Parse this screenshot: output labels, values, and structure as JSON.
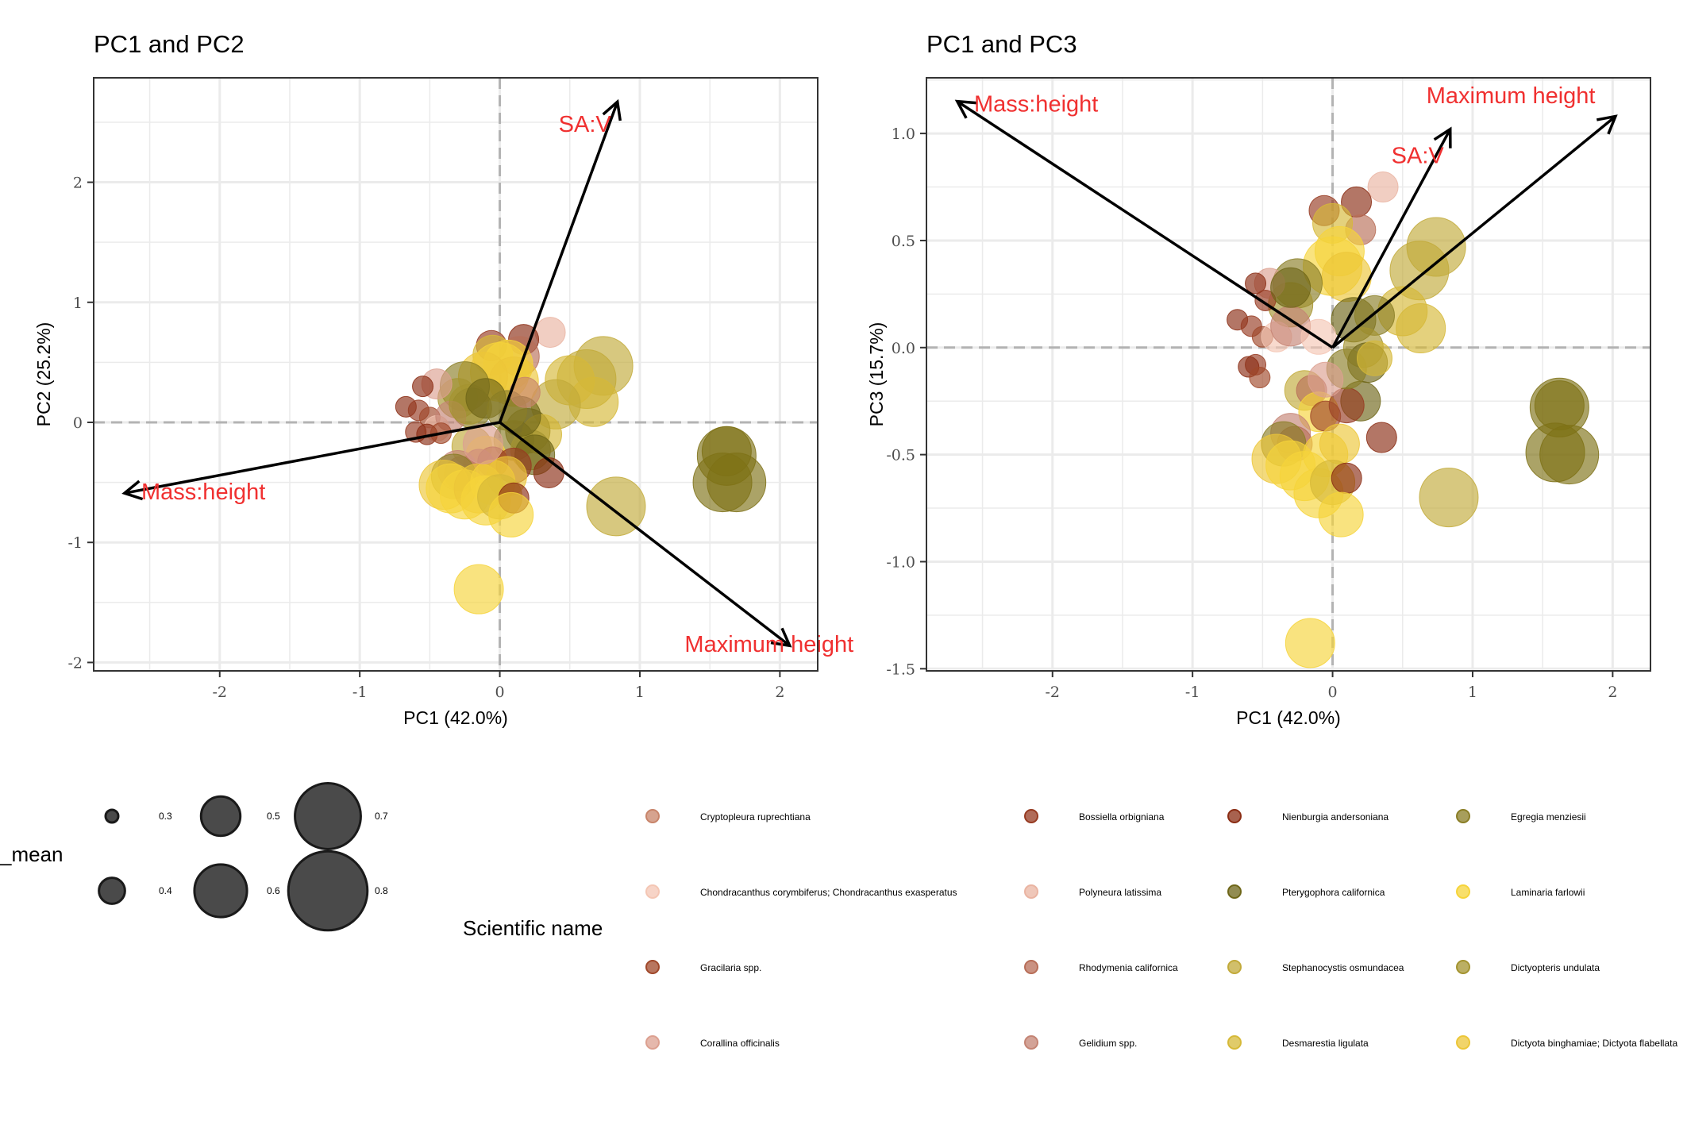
{
  "chart_data": [
    {
      "type": "scatter",
      "title": "PC1 and PC2",
      "xlabel": "PC1 (42.0%)",
      "ylabel": "PC2 (25.2%)",
      "xlim": [
        -2.9,
        2.27
      ],
      "ylim": [
        -2.07,
        2.87
      ],
      "xticks": [
        "-2",
        "-1",
        "0",
        "1",
        "2"
      ],
      "yticks": [
        "-2",
        "-1",
        "0",
        "1",
        "2"
      ],
      "grid": true,
      "ref_lines": {
        "x": 0,
        "y": 0
      },
      "loadings": [
        {
          "label": "SA:V",
          "x": 0.84,
          "y": 2.67,
          "lx": 0.42,
          "ly": 2.47
        },
        {
          "label": "Mass:height",
          "x": -2.68,
          "y": -0.59,
          "lx": -2.56,
          "ly": -0.59
        },
        {
          "label": "Maximum height",
          "x": 2.07,
          "y": -1.86,
          "lx": 1.32,
          "ly": -1.86
        }
      ],
      "points": [
        {
          "x": 1.62,
          "y": -0.28,
          "s": 0.7,
          "c": "olive"
        },
        {
          "x": 1.59,
          "y": -0.5,
          "s": 0.7,
          "c": "olive"
        },
        {
          "x": 1.69,
          "y": -0.5,
          "s": 0.7,
          "c": "olive"
        },
        {
          "x": 1.62,
          "y": -0.24,
          "s": 0.6,
          "c": "olive"
        },
        {
          "x": 0.83,
          "y": -0.7,
          "s": 0.7,
          "c": "stephano"
        },
        {
          "x": 0.74,
          "y": 0.47,
          "s": 0.7,
          "c": "stephano"
        },
        {
          "x": 0.62,
          "y": 0.36,
          "s": 0.7,
          "c": "stephano"
        },
        {
          "x": 0.67,
          "y": 0.17,
          "s": 0.6,
          "c": "desmar"
        },
        {
          "x": 0.5,
          "y": 0.35,
          "s": 0.6,
          "c": "desmar"
        },
        {
          "x": 0.4,
          "y": 0.15,
          "s": 0.6,
          "c": "stephano"
        },
        {
          "x": 0.36,
          "y": 0.75,
          "s": 0.4,
          "c": "poly"
        },
        {
          "x": 0.17,
          "y": 0.69,
          "s": 0.4,
          "c": "nien"
        },
        {
          "x": 0.14,
          "y": 0.55,
          "s": 0.5,
          "c": "rhody"
        },
        {
          "x": -0.06,
          "y": 0.64,
          "s": 0.4,
          "c": "bossiella"
        },
        {
          "x": -0.05,
          "y": 0.56,
          "s": 0.5,
          "c": "desmar"
        },
        {
          "x": 0.06,
          "y": 0.48,
          "s": 0.6,
          "c": "laminaria"
        },
        {
          "x": 0.0,
          "y": 0.42,
          "s": 0.7,
          "c": "laminaria"
        },
        {
          "x": 0.1,
          "y": 0.34,
          "s": 0.6,
          "c": "dictyota"
        },
        {
          "x": -0.12,
          "y": 0.38,
          "s": 0.6,
          "c": "dictyota"
        },
        {
          "x": -0.25,
          "y": 0.3,
          "s": 0.6,
          "c": "egregia"
        },
        {
          "x": -0.3,
          "y": 0.2,
          "s": 0.5,
          "c": "dictyopt"
        },
        {
          "x": -0.2,
          "y": 0.12,
          "s": 0.5,
          "c": "egregia"
        },
        {
          "x": -0.45,
          "y": 0.32,
          "s": 0.4,
          "c": "corallina"
        },
        {
          "x": -0.55,
          "y": 0.3,
          "s": 0.3,
          "c": "nien"
        },
        {
          "x": -0.67,
          "y": 0.13,
          "s": 0.3,
          "c": "nien"
        },
        {
          "x": -0.58,
          "y": 0.1,
          "s": 0.3,
          "c": "bossiella"
        },
        {
          "x": -0.5,
          "y": 0.04,
          "s": 0.3,
          "c": "gracilaria"
        },
        {
          "x": -0.45,
          "y": -0.05,
          "s": 0.35,
          "c": "chondra"
        },
        {
          "x": -0.35,
          "y": 0.05,
          "s": 0.4,
          "c": "gelidium"
        },
        {
          "x": -0.6,
          "y": -0.08,
          "s": 0.3,
          "c": "bossiella"
        },
        {
          "x": -0.52,
          "y": -0.1,
          "s": 0.3,
          "c": "nien"
        },
        {
          "x": -0.42,
          "y": -0.09,
          "s": 0.3,
          "c": "gracilaria"
        },
        {
          "x": 0.2,
          "y": -0.07,
          "s": 0.55,
          "c": "ptery"
        },
        {
          "x": 0.3,
          "y": -0.1,
          "s": 0.5,
          "c": "desmar"
        },
        {
          "x": 0.1,
          "y": -0.15,
          "s": 0.5,
          "c": "egregia"
        },
        {
          "x": 0.22,
          "y": -0.23,
          "s": 0.5,
          "c": "dictyopt"
        },
        {
          "x": 0.25,
          "y": -0.27,
          "s": 0.5,
          "c": "ptery"
        },
        {
          "x": 0.35,
          "y": -0.42,
          "s": 0.4,
          "c": "nien"
        },
        {
          "x": -0.2,
          "y": -0.2,
          "s": 0.5,
          "c": "stephano"
        },
        {
          "x": -0.1,
          "y": -0.28,
          "s": 0.5,
          "c": "laminaria"
        },
        {
          "x": 0.1,
          "y": -0.36,
          "s": 0.45,
          "c": "bossiella"
        },
        {
          "x": -0.05,
          "y": -0.33,
          "s": 0.4,
          "c": "gracilaria"
        },
        {
          "x": -0.15,
          "y": -0.35,
          "s": 0.4,
          "c": "rhody"
        },
        {
          "x": -0.27,
          "y": -0.43,
          "s": 0.45,
          "c": "rhody"
        },
        {
          "x": -0.3,
          "y": -0.4,
          "s": 0.5,
          "c": "gelidium"
        },
        {
          "x": -0.33,
          "y": -0.45,
          "s": 0.55,
          "c": "egregia"
        },
        {
          "x": -0.4,
          "y": -0.52,
          "s": 0.6,
          "c": "dictyota"
        },
        {
          "x": -0.35,
          "y": -0.55,
          "s": 0.6,
          "c": "laminaria"
        },
        {
          "x": -0.25,
          "y": -0.6,
          "s": 0.6,
          "c": "laminaria"
        },
        {
          "x": -0.15,
          "y": -0.55,
          "s": 0.6,
          "c": "dictyota"
        },
        {
          "x": -0.05,
          "y": -0.5,
          "s": 0.55,
          "c": "laminaria"
        },
        {
          "x": 0.05,
          "y": -0.45,
          "s": 0.5,
          "c": "dictyota"
        },
        {
          "x": -0.1,
          "y": -0.65,
          "s": 0.6,
          "c": "laminaria"
        },
        {
          "x": 0.0,
          "y": -0.62,
          "s": 0.55,
          "c": "desmar"
        },
        {
          "x": 0.1,
          "y": -0.63,
          "s": 0.4,
          "c": "nien"
        },
        {
          "x": 0.08,
          "y": -0.77,
          "s": 0.55,
          "c": "laminaria"
        },
        {
          "x": -0.15,
          "y": -1.39,
          "s": 0.6,
          "c": "laminaria"
        },
        {
          "x": -0.12,
          "y": -0.18,
          "s": 0.5,
          "c": "corallina"
        },
        {
          "x": -0.22,
          "y": 0.15,
          "s": 0.5,
          "c": "dictyopt"
        },
        {
          "x": -0.1,
          "y": 0.2,
          "s": 0.5,
          "c": "ptery"
        },
        {
          "x": 0.15,
          "y": 0.05,
          "s": 0.5,
          "c": "ptery"
        },
        {
          "x": 0.05,
          "y": 0.1,
          "s": 0.5,
          "c": "egregia"
        },
        {
          "x": 0.18,
          "y": 0.25,
          "s": 0.4,
          "c": "cryptopleura"
        }
      ]
    },
    {
      "type": "scatter",
      "title": "PC1 and PC3",
      "xlabel": "PC1 (42.0%)",
      "ylabel": "PC3 (15.7%)",
      "xlim": [
        -2.9,
        2.27
      ],
      "ylim": [
        -1.51,
        1.26
      ],
      "xticks": [
        "-2",
        "-1",
        "0",
        "1",
        "2"
      ],
      "yticks": [
        "-1.5",
        "-1.0",
        "-0.5",
        "0.0",
        "0.5",
        "1.0"
      ],
      "grid": true,
      "ref_lines": {
        "x": 0,
        "y": 0
      },
      "loadings": [
        {
          "label": "Mass:height",
          "x": -2.68,
          "y": 1.15,
          "lx": -2.56,
          "ly": 1.13
        },
        {
          "label": "Maximum height",
          "x": 2.02,
          "y": 1.08,
          "lx": 0.67,
          "ly": 1.17
        },
        {
          "label": "SA:V",
          "x": 0.84,
          "y": 1.02,
          "lx": 0.42,
          "ly": 0.89
        }
      ],
      "points": [
        {
          "x": 1.62,
          "y": -0.27,
          "s": 0.6,
          "c": "olive"
        },
        {
          "x": 1.62,
          "y": -0.28,
          "s": 0.7,
          "c": "olive"
        },
        {
          "x": 1.59,
          "y": -0.49,
          "s": 0.7,
          "c": "olive"
        },
        {
          "x": 1.69,
          "y": -0.5,
          "s": 0.7,
          "c": "olive"
        },
        {
          "x": 0.83,
          "y": -0.7,
          "s": 0.7,
          "c": "stephano"
        },
        {
          "x": 0.74,
          "y": 0.47,
          "s": 0.7,
          "c": "stephano"
        },
        {
          "x": 0.62,
          "y": 0.36,
          "s": 0.7,
          "c": "stephano"
        },
        {
          "x": 0.63,
          "y": 0.09,
          "s": 0.6,
          "c": "desmar"
        },
        {
          "x": 0.5,
          "y": 0.17,
          "s": 0.6,
          "c": "desmar"
        },
        {
          "x": 0.36,
          "y": 0.75,
          "s": 0.4,
          "c": "poly"
        },
        {
          "x": 0.17,
          "y": 0.68,
          "s": 0.4,
          "c": "nien"
        },
        {
          "x": 0.2,
          "y": 0.55,
          "s": 0.4,
          "c": "rhody"
        },
        {
          "x": -0.06,
          "y": 0.64,
          "s": 0.4,
          "c": "bossiella"
        },
        {
          "x": 0.0,
          "y": 0.58,
          "s": 0.5,
          "c": "desmar"
        },
        {
          "x": 0.05,
          "y": 0.45,
          "s": 0.6,
          "c": "laminaria"
        },
        {
          "x": 0.0,
          "y": 0.38,
          "s": 0.7,
          "c": "laminaria"
        },
        {
          "x": 0.1,
          "y": 0.33,
          "s": 0.6,
          "c": "dictyota"
        },
        {
          "x": -0.25,
          "y": 0.3,
          "s": 0.6,
          "c": "egregia"
        },
        {
          "x": -0.3,
          "y": 0.2,
          "s": 0.55,
          "c": "dictyopt"
        },
        {
          "x": -0.45,
          "y": 0.3,
          "s": 0.4,
          "c": "corallina"
        },
        {
          "x": -0.55,
          "y": 0.3,
          "s": 0.3,
          "c": "nien"
        },
        {
          "x": -0.48,
          "y": 0.22,
          "s": 0.3,
          "c": "bossiella"
        },
        {
          "x": -0.68,
          "y": 0.13,
          "s": 0.3,
          "c": "nien"
        },
        {
          "x": -0.58,
          "y": 0.1,
          "s": 0.3,
          "c": "bossiella"
        },
        {
          "x": -0.5,
          "y": 0.05,
          "s": 0.3,
          "c": "gracilaria"
        },
        {
          "x": -0.4,
          "y": 0.05,
          "s": 0.4,
          "c": "chondra"
        },
        {
          "x": -0.3,
          "y": 0.1,
          "s": 0.5,
          "c": "gelidium"
        },
        {
          "x": -0.55,
          "y": -0.08,
          "s": 0.3,
          "c": "bossiella"
        },
        {
          "x": -0.6,
          "y": -0.09,
          "s": 0.3,
          "c": "nien"
        },
        {
          "x": -0.52,
          "y": -0.14,
          "s": 0.3,
          "c": "gracilaria"
        },
        {
          "x": 0.15,
          "y": 0.13,
          "s": 0.55,
          "c": "ptery"
        },
        {
          "x": 0.3,
          "y": 0.15,
          "s": 0.5,
          "c": "egregia"
        },
        {
          "x": 0.22,
          "y": 0.0,
          "s": 0.5,
          "c": "dictyopt"
        },
        {
          "x": 0.25,
          "y": -0.07,
          "s": 0.5,
          "c": "ptery"
        },
        {
          "x": 0.2,
          "y": -0.25,
          "s": 0.5,
          "c": "ptery"
        },
        {
          "x": 0.35,
          "y": -0.42,
          "s": 0.4,
          "c": "nien"
        },
        {
          "x": -0.2,
          "y": -0.2,
          "s": 0.5,
          "c": "stephano"
        },
        {
          "x": -0.15,
          "y": -0.2,
          "s": 0.4,
          "c": "rhody"
        },
        {
          "x": -0.1,
          "y": -0.3,
          "s": 0.5,
          "c": "laminaria"
        },
        {
          "x": 0.1,
          "y": -0.27,
          "s": 0.45,
          "c": "bossiella"
        },
        {
          "x": -0.05,
          "y": -0.32,
          "s": 0.4,
          "c": "gracilaria"
        },
        {
          "x": -0.3,
          "y": -0.4,
          "s": 0.5,
          "c": "gelidium"
        },
        {
          "x": -0.27,
          "y": -0.45,
          "s": 0.45,
          "c": "rhody"
        },
        {
          "x": -0.35,
          "y": -0.45,
          "s": 0.55,
          "c": "egregia"
        },
        {
          "x": -0.4,
          "y": -0.52,
          "s": 0.6,
          "c": "dictyota"
        },
        {
          "x": -0.3,
          "y": -0.55,
          "s": 0.6,
          "c": "laminaria"
        },
        {
          "x": -0.2,
          "y": -0.6,
          "s": 0.6,
          "c": "laminaria"
        },
        {
          "x": -0.05,
          "y": -0.5,
          "s": 0.55,
          "c": "laminaria"
        },
        {
          "x": 0.05,
          "y": -0.45,
          "s": 0.5,
          "c": "dictyota"
        },
        {
          "x": -0.1,
          "y": -0.68,
          "s": 0.6,
          "c": "laminaria"
        },
        {
          "x": 0.0,
          "y": -0.63,
          "s": 0.55,
          "c": "desmar"
        },
        {
          "x": 0.1,
          "y": -0.61,
          "s": 0.4,
          "c": "nien"
        },
        {
          "x": 0.06,
          "y": -0.78,
          "s": 0.55,
          "c": "laminaria"
        },
        {
          "x": -0.16,
          "y": -1.38,
          "s": 0.6,
          "c": "laminaria"
        },
        {
          "x": -0.3,
          "y": 0.28,
          "s": 0.5,
          "c": "ptery"
        },
        {
          "x": 0.1,
          "y": -0.1,
          "s": 0.5,
          "c": "egregia"
        },
        {
          "x": 0.3,
          "y": -0.05,
          "s": 0.45,
          "c": "desmar"
        },
        {
          "x": -0.1,
          "y": 0.05,
          "s": 0.45,
          "c": "chondra"
        },
        {
          "x": -0.05,
          "y": -0.15,
          "s": 0.45,
          "c": "corallina"
        }
      ]
    }
  ],
  "size_legend": {
    "title": "_mean",
    "entries": [
      "0.3",
      "0.4",
      "0.5",
      "0.6",
      "0.7",
      "0.8"
    ]
  },
  "color_legend": {
    "title": "Scientific name",
    "items": [
      {
        "key": "cryptopleura",
        "label": "Cryptopleura ruprechtiana",
        "color": "#c8846a"
      },
      {
        "key": "chondra",
        "label": "Chondracanthus corymbiferus; Chondracanthus exasperatus",
        "color": "#f4c6b4"
      },
      {
        "key": "gracilaria",
        "label": "Gracilaria spp.",
        "color": "#a0482a"
      },
      {
        "key": "corallina",
        "label": "Corallina officinalis",
        "color": "#dca090"
      },
      {
        "key": "bossiella",
        "label": "Bossiella orbigniana",
        "color": "#973b22"
      },
      {
        "key": "poly",
        "label": "Polyneura latissima",
        "color": "#eab4a2"
      },
      {
        "key": "rhody",
        "label": "Rhodymenia californica",
        "color": "#b86e58"
      },
      {
        "key": "gelidium",
        "label": "Gelidium spp.",
        "color": "#c48474"
      },
      {
        "key": "nien",
        "label": "Nienburgia andersoniana",
        "color": "#8b2d14"
      },
      {
        "key": "ptery",
        "label": "Pterygophora californica",
        "color": "#6e6618"
      },
      {
        "key": "stephano",
        "label": "Stephanocystis osmundacea",
        "color": "#c2aa3a"
      },
      {
        "key": "desmar",
        "label": "Desmarestia ligulata",
        "color": "#d6b938"
      },
      {
        "key": "egregia",
        "label": "Egregia menziesii",
        "color": "#8a7e26"
      },
      {
        "key": "laminaria",
        "label": "Laminaria farlowii",
        "color": "#f6d43a"
      },
      {
        "key": "dictyopt",
        "label": "Dictyopteris undulata",
        "color": "#a49430"
      },
      {
        "key": "dictyota",
        "label": "Dictyota binghamiae; Dictyota flabellata",
        "color": "#ecc638"
      },
      {
        "key": "olive",
        "label": "",
        "color": "#7e7116"
      }
    ]
  },
  "colors": {
    "loading_label": "#f03030",
    "arrow": "#000000",
    "gridline": "#ebebeb",
    "refline": "#b3b3b3"
  }
}
